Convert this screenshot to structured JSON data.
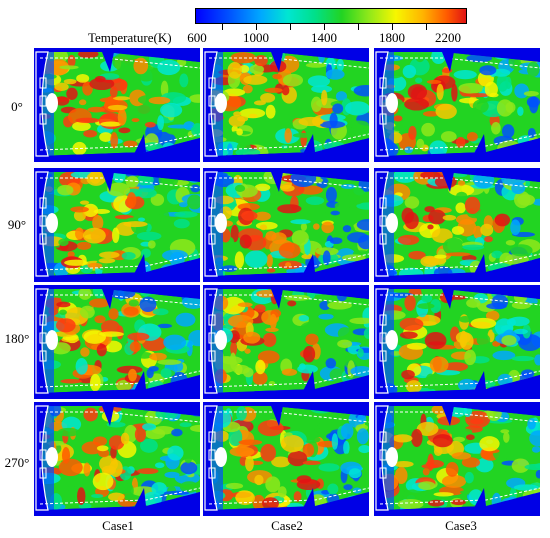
{
  "colorbar": {
    "title": "Temperature(K)",
    "tick_labels": [
      "600",
      "1000",
      "1400",
      "1800",
      "2200"
    ],
    "colors": [
      "#0000ff",
      "#00a8ff",
      "#00e6d2",
      "#22d422",
      "#f7f700",
      "#ff5a00",
      "#e01414"
    ]
  },
  "rows": [
    "0°",
    "90°",
    "180°",
    "270°"
  ],
  "cases": [
    "Case1",
    "Case2",
    "Case3"
  ]
}
